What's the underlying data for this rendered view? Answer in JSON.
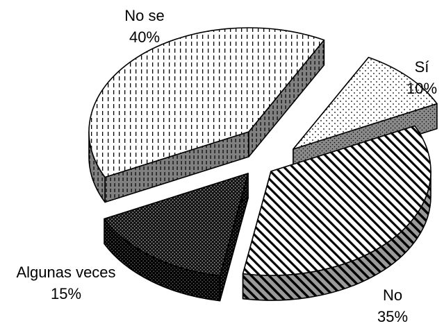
{
  "chart_data": {
    "type": "pie",
    "style": "3d-exploded",
    "title": "",
    "slices": [
      {
        "label": "Sí",
        "value_text": "10%",
        "value": 10,
        "pattern": "dots"
      },
      {
        "label": "No",
        "value_text": "35%",
        "value": 35,
        "pattern": "diagonal-stripes"
      },
      {
        "label": "Algunas veces",
        "value_text": "15%",
        "value": 15,
        "pattern": "dense-dots"
      },
      {
        "label": "No se",
        "value_text": "40%",
        "value": 40,
        "pattern": "vertical-dashes"
      }
    ],
    "colors": {
      "outline": "#000000",
      "face_background": "#ffffff",
      "dark_face_background": "#1a1a1a",
      "side_wall": "#808080"
    },
    "legend": "none",
    "labels_placement": "outside"
  }
}
